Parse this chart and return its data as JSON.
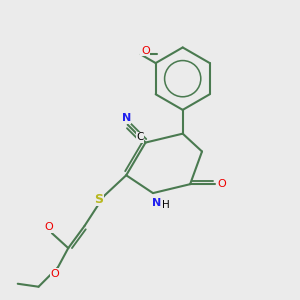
{
  "background_color": "#ebebeb",
  "bond_color": "#4a7a50",
  "bond_width": 1.5,
  "atom_colors": {
    "N": "#2020ee",
    "O": "#ee0000",
    "S": "#b8b820",
    "C": "#000000"
  },
  "figsize": [
    3.0,
    3.0
  ],
  "dpi": 100
}
